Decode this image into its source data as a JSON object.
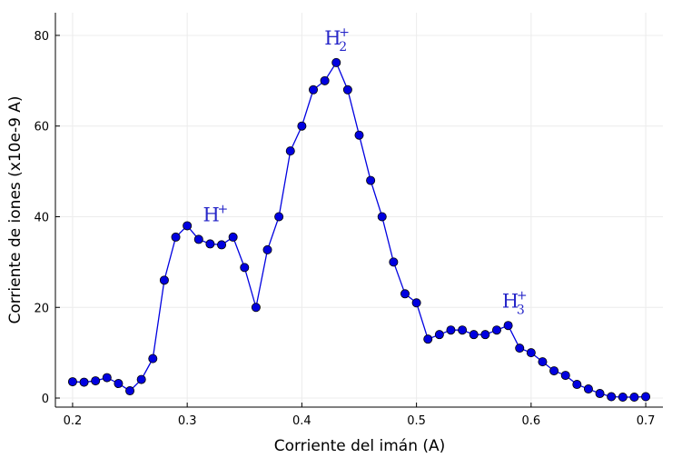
{
  "chart_data": {
    "type": "line",
    "title": "",
    "xlabel": "Corriente del imán (A)",
    "ylabel": "Corriente de iones (x10e-9 A)",
    "xlim": [
      0.185,
      0.715
    ],
    "ylim": [
      -2,
      85
    ],
    "xticks": [
      0.2,
      0.3,
      0.4,
      0.5,
      0.6,
      0.7
    ],
    "xtick_labels": [
      "0.2",
      "0.3",
      "0.4",
      "0.5",
      "0.6",
      "0.7"
    ],
    "yticks": [
      0,
      20,
      40,
      60,
      80
    ],
    "ytick_labels": [
      "0",
      "20",
      "40",
      "60",
      "80"
    ],
    "grid": true,
    "legend": "none",
    "series": [
      {
        "color": "#0000e0",
        "marker": "circle",
        "x": [
          0.2,
          0.21,
          0.22,
          0.23,
          0.24,
          0.25,
          0.26,
          0.27,
          0.28,
          0.29,
          0.3,
          0.31,
          0.32,
          0.33,
          0.34,
          0.35,
          0.36,
          0.37,
          0.38,
          0.39,
          0.4,
          0.41,
          0.42,
          0.43,
          0.44,
          0.45,
          0.46,
          0.47,
          0.48,
          0.49,
          0.5,
          0.51,
          0.52,
          0.53,
          0.54,
          0.55,
          0.56,
          0.57,
          0.58,
          0.59,
          0.6,
          0.61,
          0.62,
          0.63,
          0.64,
          0.65,
          0.66,
          0.67,
          0.68,
          0.69,
          0.7
        ],
        "y": [
          3.6,
          3.5,
          3.8,
          4.5,
          3.2,
          1.6,
          4.1,
          8.7,
          26,
          35.5,
          38,
          35,
          34,
          33.8,
          35.5,
          28.8,
          20,
          32.7,
          40,
          54.5,
          60,
          68,
          70,
          74,
          68,
          58,
          48,
          40,
          30,
          23,
          21,
          13,
          14,
          15,
          15,
          14,
          14,
          15,
          16,
          11,
          10,
          8,
          6,
          5,
          3,
          2,
          1,
          0.3,
          0.2,
          0.2,
          0.3
        ]
      }
    ],
    "annotations": [
      {
        "base": "H",
        "sup": "+",
        "sub": "",
        "x": 0.324,
        "y": 39
      },
      {
        "base": "H",
        "sup": "+",
        "sub": "2",
        "x": 0.43,
        "y": 78
      },
      {
        "base": "H",
        "sup": "+",
        "sub": "3",
        "x": 0.585,
        "y": 20
      }
    ]
  }
}
